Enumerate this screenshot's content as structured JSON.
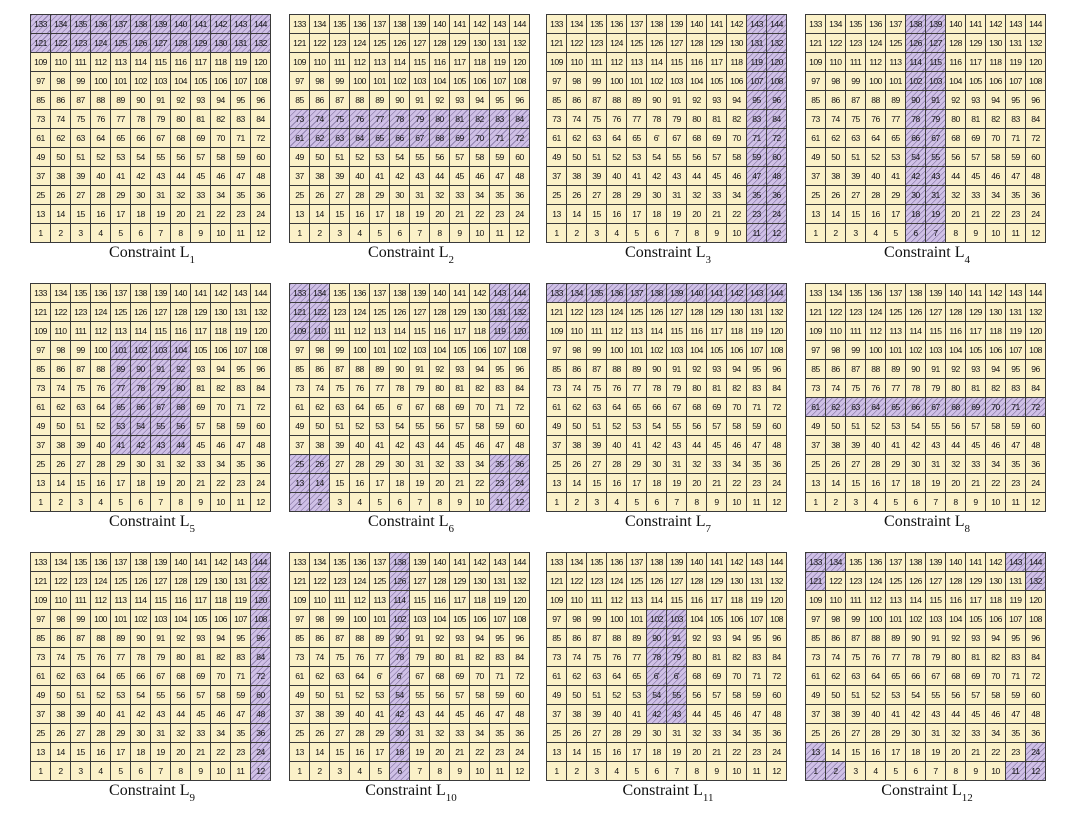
{
  "figure": {
    "grid": {
      "rows": 12,
      "cols": 12,
      "start": 1,
      "end": 144
    },
    "colors": {
      "cell_fill": "#fbf1c8",
      "highlight_fill": "#cfc0e6",
      "hatch": "#5f5082",
      "border": "#3a3a3a"
    },
    "panels": [
      {
        "caption": "Constraint L",
        "subscript": "1",
        "highlighted": [
          121,
          122,
          123,
          124,
          125,
          126,
          127,
          128,
          129,
          130,
          131,
          132,
          133,
          134,
          135,
          136,
          137,
          138,
          139,
          140,
          141,
          142,
          143,
          144
        ]
      },
      {
        "caption": "Constraint L",
        "subscript": "2",
        "highlighted": [
          61,
          62,
          63,
          64,
          65,
          66,
          67,
          68,
          69,
          70,
          71,
          72,
          73,
          74,
          75,
          76,
          77,
          78,
          79,
          80,
          81,
          82,
          83,
          84
        ]
      },
      {
        "caption": "Constraint L",
        "subscript": "3",
        "highlighted": [
          11,
          12,
          23,
          24,
          35,
          36,
          47,
          48,
          59,
          60,
          71,
          72,
          83,
          84,
          95,
          96,
          107,
          108,
          119,
          120,
          131,
          132,
          143,
          144
        ]
      },
      {
        "caption": "Constraint L",
        "subscript": "4",
        "highlighted": [
          6,
          7,
          18,
          19,
          30,
          31,
          42,
          43,
          54,
          55,
          66,
          67,
          78,
          79,
          90,
          91,
          102,
          103,
          114,
          115,
          126,
          127,
          138,
          139
        ]
      },
      {
        "caption": "Constraint L",
        "subscript": "5",
        "highlighted": [
          41,
          42,
          43,
          44,
          53,
          54,
          55,
          56,
          65,
          66,
          67,
          68,
          77,
          78,
          79,
          80,
          89,
          90,
          91,
          92,
          101,
          102,
          103,
          104
        ]
      },
      {
        "caption": "Constraint L",
        "subscript": "6",
        "highlighted": [
          1,
          2,
          13,
          14,
          25,
          26,
          11,
          12,
          23,
          24,
          35,
          36,
          109,
          110,
          121,
          122,
          133,
          134,
          119,
          120,
          131,
          132,
          143,
          144
        ]
      },
      {
        "caption": "Constraint L",
        "subscript": "7",
        "highlighted": [
          133,
          134,
          135,
          136,
          137,
          138,
          139,
          140,
          141,
          142,
          143,
          144
        ]
      },
      {
        "caption": "Constraint L",
        "subscript": "8",
        "highlighted": [
          61,
          62,
          63,
          64,
          65,
          66,
          67,
          68,
          69,
          70,
          71,
          72
        ]
      },
      {
        "caption": "Constraint L",
        "subscript": "9",
        "highlighted": [
          12,
          24,
          36,
          48,
          60,
          72,
          84,
          96,
          108,
          120,
          132,
          144
        ]
      },
      {
        "caption": "Constraint L",
        "subscript": "10",
        "highlighted": [
          6,
          18,
          30,
          42,
          54,
          66,
          78,
          90,
          102,
          114,
          126,
          138
        ]
      },
      {
        "caption": "Constraint L",
        "subscript": "11",
        "highlighted": [
          42,
          54,
          66,
          78,
          90,
          102,
          43,
          55,
          67,
          79,
          91,
          103
        ]
      },
      {
        "caption": "Constraint L",
        "subscript": "12",
        "highlighted": [
          1,
          2,
          13,
          11,
          12,
          24,
          121,
          133,
          134,
          132,
          143,
          144
        ]
      }
    ],
    "cell_overrides": {
      "3.66": "6'",
      "6.66": "6'",
      "10.65": "6'",
      "10.66": "6'",
      "11.66": "6'",
      "11.67": "6'"
    }
  }
}
